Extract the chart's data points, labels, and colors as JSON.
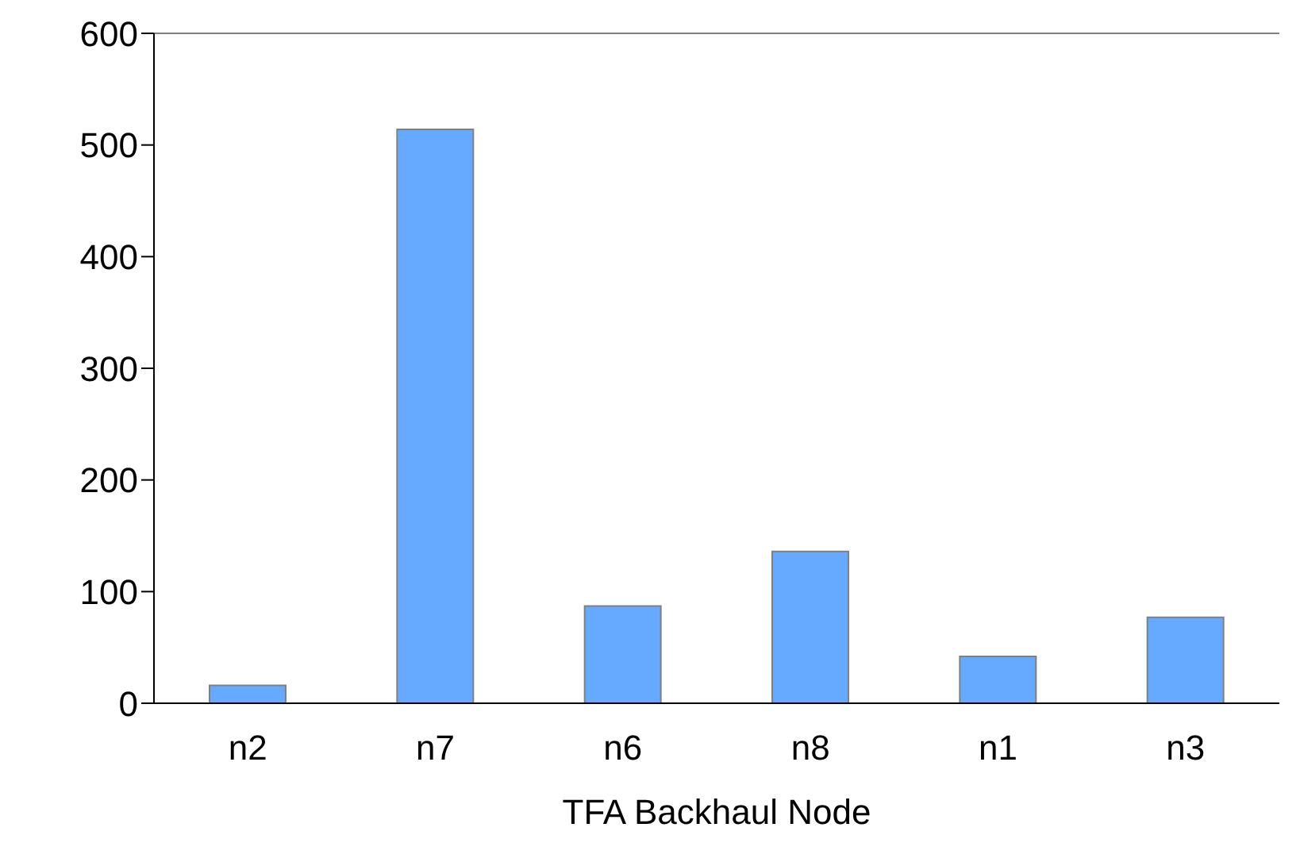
{
  "chart_data": {
    "type": "bar",
    "xlabel": "TFA Backhaul Node",
    "categories": [
      "n2",
      "n7",
      "n6",
      "n8",
      "n1",
      "n3"
    ],
    "values": [
      16,
      514,
      87,
      136,
      42,
      77
    ],
    "color": "#66aaff",
    "ylim": [
      0,
      600
    ],
    "yticks": [
      0,
      100,
      200,
      300,
      400,
      500,
      600
    ],
    "grid": false
  }
}
